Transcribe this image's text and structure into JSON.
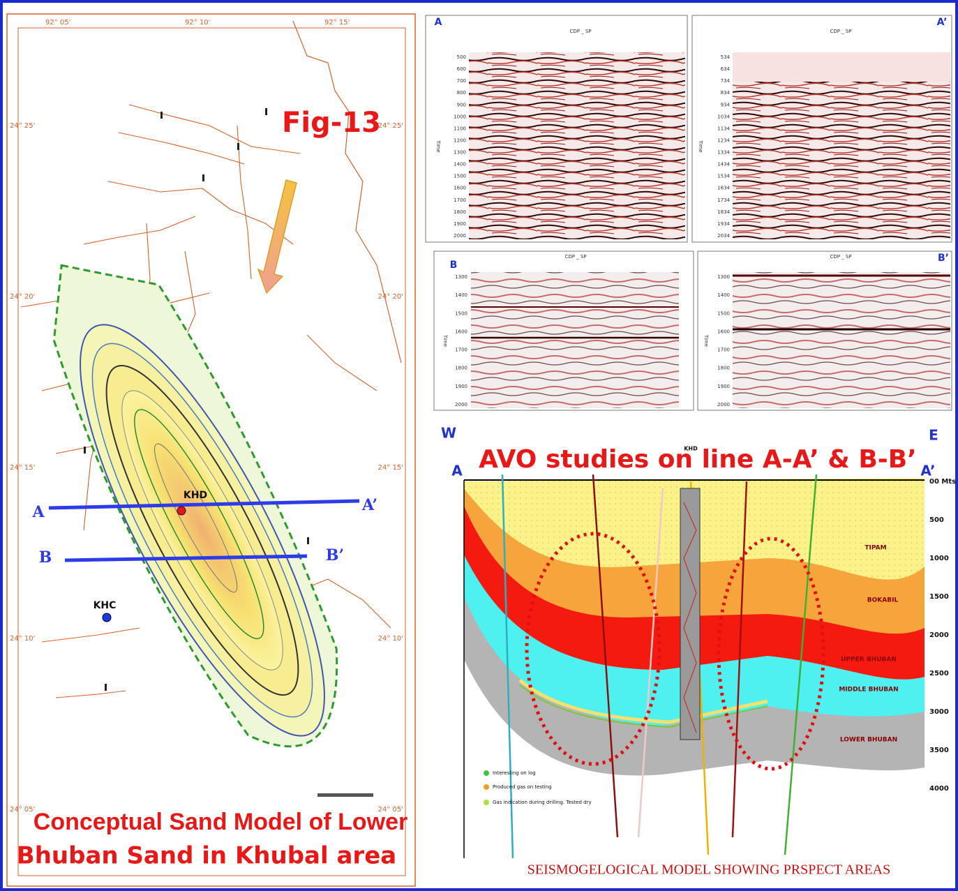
{
  "map": {
    "fig_label": "Fig-13",
    "caption": [
      "Conceptual Sand Model of Lower",
      "Bhuban Sand in Khubal area"
    ],
    "wells": [
      "KHD",
      "KHC"
    ],
    "line_labels": [
      "A",
      "A’",
      "B",
      "B’"
    ],
    "longitudes": [
      "92° 05'",
      "92° 10'",
      "92° 15'"
    ],
    "latitudes": [
      "24° 25'",
      "24° 20'",
      "24° 15'",
      "24° 10'",
      "24° 05'"
    ]
  },
  "seismic": {
    "axis_title": "CDP _ SP",
    "y_label": "Time",
    "panels": [
      {
        "label": "A",
        "times": [
          "500",
          "600",
          "700",
          "800",
          "900",
          "1000",
          "1100",
          "1200",
          "1300",
          "1400",
          "1500",
          "1600",
          "1700",
          "1800",
          "1900",
          "2000"
        ]
      },
      {
        "label": "A’",
        "times": [
          "534",
          "634",
          "734",
          "834",
          "934",
          "1034",
          "1134",
          "1234",
          "1334",
          "1434",
          "1534",
          "1634",
          "1734",
          "1834",
          "1934",
          "2034"
        ]
      },
      {
        "label": "B",
        "times": [
          "1300",
          "1400",
          "1500",
          "1600",
          "1700",
          "1800",
          "1900",
          "2000"
        ]
      },
      {
        "label": "B’",
        "times": [
          "1300",
          "1400",
          "1500",
          "1600",
          "1700",
          "1800",
          "1900",
          "2000"
        ]
      }
    ]
  },
  "model": {
    "title": "AVO studies on line A-A’ & B-B’",
    "west": "W",
    "east": "E",
    "line_start": "A",
    "line_end": "A’",
    "well": "KHD",
    "layers": [
      "TIPAM",
      "BOKABIL",
      "UPPER BHUBAN",
      "MIDDLE BHUBAN",
      "LOWER BHUBAN"
    ],
    "depths": [
      "00 Mts",
      "500",
      "1000",
      "1500",
      "2000",
      "2500",
      "3000",
      "3500",
      "4000"
    ],
    "legend": [
      "Interesting on log",
      "Produced gas on testing",
      "Gas indication during drilling. Tested dry"
    ],
    "caption": "SEISMOGELOGICAL MODEL SHOWING PRSPECT AREAS"
  }
}
